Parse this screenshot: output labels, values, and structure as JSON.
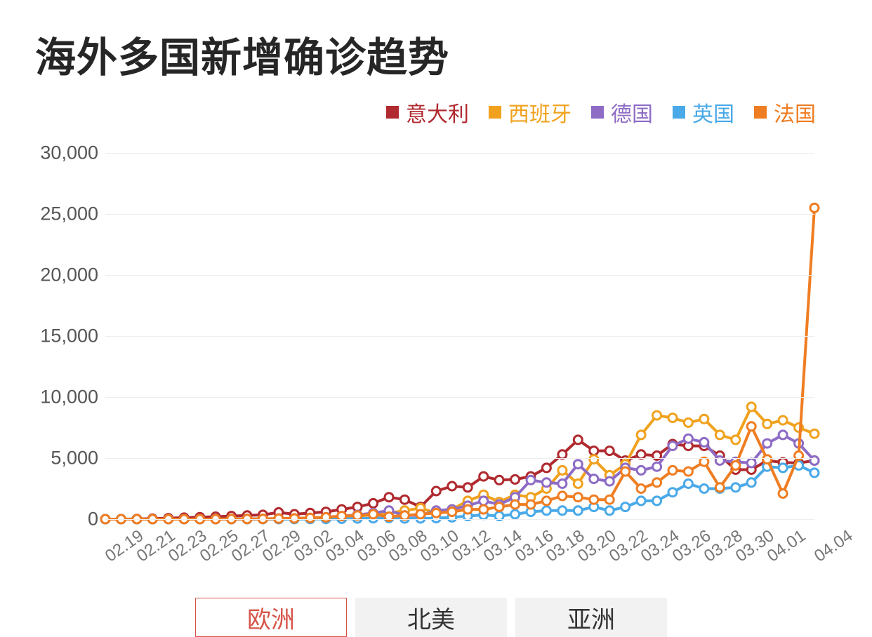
{
  "title": "海外多国新增确诊趋势",
  "title_fontsize": 58,
  "title_color": "#262626",
  "background_color": "#ffffff",
  "chart": {
    "type": "line",
    "ylim": [
      0,
      30000
    ],
    "ytick_step": 5000,
    "yticks": [
      0,
      5000,
      10000,
      15000,
      20000,
      25000,
      30000
    ],
    "ytick_labels": [
      "0",
      "5,000",
      "10,000",
      "15,000",
      "20,000",
      "25,000",
      "30,000"
    ],
    "xcategories": [
      "02.19",
      "02.20",
      "02.21",
      "02.22",
      "02.23",
      "02.24",
      "02.25",
      "02.26",
      "02.27",
      "02.28",
      "02.29",
      "03.01",
      "03.02",
      "03.03",
      "03.04",
      "03.05",
      "03.06",
      "03.07",
      "03.08",
      "03.09",
      "03.10",
      "03.11",
      "03.12",
      "03.13",
      "03.14",
      "03.15",
      "03.16",
      "03.17",
      "03.18",
      "03.19",
      "03.20",
      "03.21",
      "03.22",
      "03.23",
      "03.24",
      "03.25",
      "03.26",
      "03.27",
      "03.28",
      "03.29",
      "03.30",
      "03.31",
      "04.01",
      "04.02",
      "04.03",
      "04.04"
    ],
    "xticks_shown": [
      "02.19",
      "02.21",
      "02.23",
      "02.25",
      "02.27",
      "02.29",
      "03.02",
      "03.04",
      "03.06",
      "03.08",
      "03.10",
      "03.12",
      "03.14",
      "03.16",
      "03.18",
      "03.20",
      "03.22",
      "03.24",
      "03.26",
      "03.28",
      "03.30",
      "04.01",
      "04.04"
    ],
    "xtick_fontsize": 24,
    "ytick_fontsize": 27,
    "tick_color": "#777777",
    "grid_color": "#eeeeee",
    "line_width": 4,
    "marker_radius": 6,
    "marker_stroke_width": 3,
    "marker_fill": "#ffffff",
    "series": [
      {
        "key": "italy",
        "label": "意大利",
        "color": "#b02a2f",
        "values": [
          0,
          0,
          20,
          40,
          80,
          120,
          160,
          200,
          250,
          300,
          350,
          550,
          400,
          500,
          600,
          800,
          1000,
          1300,
          1800,
          1600,
          1000,
          2300,
          2700,
          2600,
          3500,
          3200,
          3250,
          3500,
          4200,
          5300,
          6500,
          5600,
          5600,
          4800,
          5300,
          5200,
          6150,
          6000,
          6000,
          5200,
          4050,
          4050,
          4800,
          4650,
          4600,
          4800
        ]
      },
      {
        "key": "spain",
        "label": "西班牙",
        "color": "#f0a21e",
        "values": [
          0,
          0,
          0,
          0,
          0,
          0,
          0,
          0,
          10,
          20,
          30,
          50,
          60,
          80,
          120,
          160,
          250,
          350,
          500,
          700,
          900,
          500,
          800,
          1500,
          2000,
          1400,
          2000,
          1800,
          2500,
          4000,
          2900,
          4900,
          3600,
          4500,
          6900,
          8500,
          8300,
          7900,
          8200,
          6900,
          6500,
          9200,
          7800,
          8100,
          7500,
          7000
        ]
      },
      {
        "key": "germany",
        "label": "德国",
        "color": "#8e6cc5",
        "values": [
          0,
          0,
          0,
          0,
          0,
          0,
          0,
          0,
          5,
          10,
          20,
          40,
          60,
          100,
          150,
          250,
          350,
          500,
          700,
          300,
          300,
          700,
          800,
          1100,
          1500,
          1200,
          1800,
          3200,
          3000,
          2900,
          4500,
          3300,
          3100,
          4200,
          4000,
          4300,
          6000,
          6600,
          6300,
          4800,
          4700,
          4600,
          6200,
          6900,
          6200,
          4800
        ]
      },
      {
        "key": "uk",
        "label": "英国",
        "color": "#4aa9e8",
        "values": [
          0,
          0,
          0,
          0,
          0,
          0,
          0,
          0,
          0,
          0,
          0,
          0,
          5,
          10,
          20,
          30,
          50,
          70,
          100,
          50,
          60,
          80,
          150,
          250,
          350,
          250,
          400,
          600,
          700,
          700,
          700,
          1000,
          700,
          1000,
          1500,
          1500,
          2200,
          2900,
          2500,
          2500,
          2600,
          3000,
          4300,
          4200,
          4400,
          3800
        ]
      },
      {
        "key": "france",
        "label": "法国",
        "color": "#ef7d22",
        "values": [
          0,
          0,
          0,
          0,
          0,
          0,
          0,
          0,
          5,
          10,
          20,
          40,
          60,
          100,
          150,
          250,
          300,
          400,
          200,
          300,
          400,
          500,
          600,
          800,
          800,
          1000,
          1200,
          1200,
          1500,
          1900,
          1800,
          1600,
          1600,
          3900,
          2500,
          3000,
          4000,
          3900,
          4700,
          2600,
          4400,
          7600,
          4900,
          2100,
          5200,
          25500
        ]
      }
    ]
  },
  "legend": {
    "fontsize": 30,
    "swatch_size": 18
  },
  "tabs": {
    "items": [
      {
        "label": "欧洲",
        "active": true
      },
      {
        "label": "北美",
        "active": false
      },
      {
        "label": "亚洲",
        "active": false
      }
    ],
    "active_border_color": "#d7554a",
    "active_text_color": "#d7554a",
    "inactive_bg": "#f2f2f2",
    "fontsize": 34
  }
}
